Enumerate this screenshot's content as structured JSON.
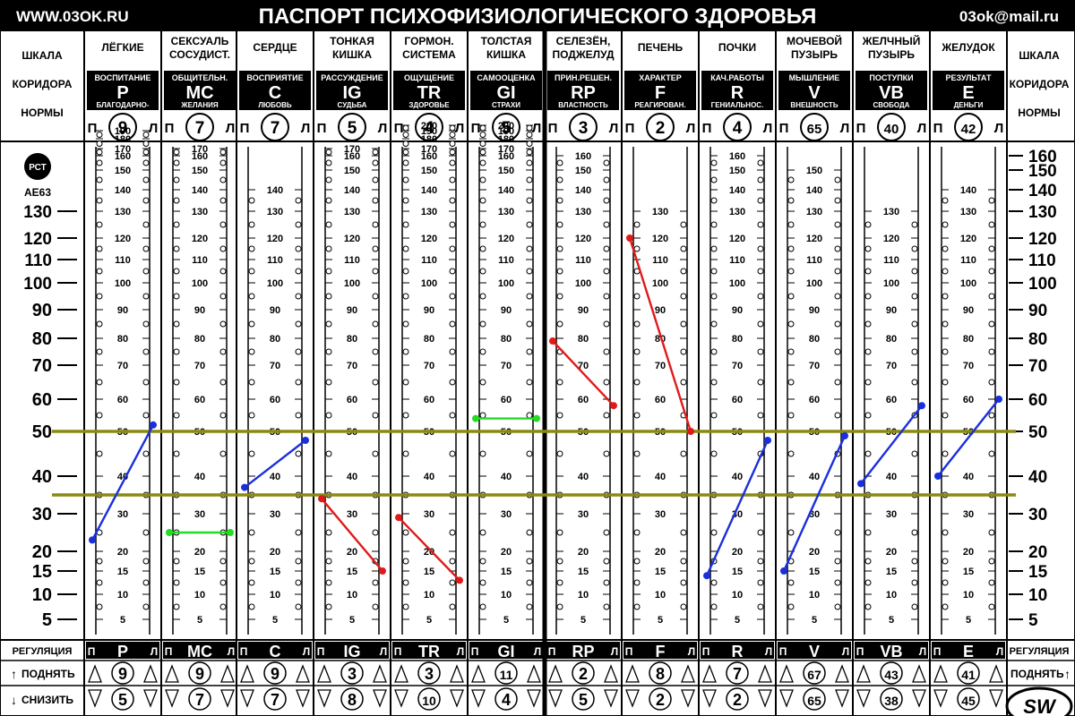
{
  "header": {
    "site": "WWW.03OK.RU",
    "title": "ПАСПОРТ ПСИХОФИЗИОЛОГИЧЕСКОГО ЗДОРОВЬЯ",
    "email": "03ok@mail.ru"
  },
  "side_scale": {
    "label_lines": [
      "ШКАЛА",
      "КОРИДОРА",
      "НОРМЫ"
    ],
    "left_ticks": [
      "130",
      "120",
      "110",
      "100",
      "90",
      "80",
      "70",
      "60",
      "50",
      "40",
      "30",
      "20",
      "15",
      "10",
      "5"
    ],
    "right_ticks": [
      "160",
      "150",
      "140",
      "130",
      "120",
      "110",
      "100",
      "90",
      "80",
      "70",
      "60",
      "50",
      "40",
      "30",
      "20",
      "15",
      "10",
      "5"
    ],
    "cert_mark": "РСТ",
    "cert_code": "АЕ63"
  },
  "footer": {
    "regulation": "РЕГУЛЯЦИЯ",
    "raise": "ПОДНЯТЬ",
    "lower": "СНИЗИТЬ",
    "logo": "SW"
  },
  "pl_labels": {
    "left": "П",
    "right": "Л"
  },
  "colors": {
    "increase_line": "#1a2fdc",
    "decrease_line": "#e01a1a",
    "flat_line": "#22dd22",
    "norm_corridor": "#8a8a10",
    "chrome": "#000000"
  },
  "chart_data": {
    "type": "line",
    "norm_corridor": {
      "upper": 50,
      "lower": 35,
      "unit": "scale of corridor of norm"
    },
    "organs": [
      {
        "organ": [
          "ЛЁГКИЕ"
        ],
        "trait_top": "ВОСПИТАНИЕ",
        "code": "P",
        "trait_bottom": "БЛАГОДАРНО-",
        "index": "9",
        "ticks": [
          190,
          180,
          170,
          160,
          150,
          140,
          130,
          120,
          110,
          100,
          90,
          80,
          70,
          60,
          50,
          40,
          30,
          20,
          15,
          10,
          5
        ],
        "p": 23,
        "l": 52,
        "color": "increase",
        "raise": "9",
        "lower": "5"
      },
      {
        "organ": [
          "СЕКСУАЛЬ",
          "СОСУДИСТ."
        ],
        "trait_top": "ОБЩИТЕЛЬН.",
        "code": "MC",
        "trait_bottom": "ЖЕЛАНИЯ",
        "index": "7",
        "ticks": [
          170,
          160,
          150,
          140,
          130,
          120,
          110,
          100,
          90,
          80,
          70,
          60,
          50,
          40,
          30,
          20,
          15,
          10,
          5
        ],
        "p": 25,
        "l": 25,
        "color": "flat",
        "raise": "9",
        "lower": "7"
      },
      {
        "organ": [
          "СЕРДЦЕ"
        ],
        "trait_top": "ВОСПРИЯТИЕ",
        "code": "C",
        "trait_bottom": "ЛЮБОВЬ",
        "index": "7",
        "ticks": [
          140,
          130,
          120,
          110,
          100,
          90,
          80,
          70,
          60,
          50,
          40,
          30,
          20,
          15,
          10,
          5
        ],
        "p": 37,
        "l": 48,
        "color": "increase",
        "raise": "9",
        "lower": "7"
      },
      {
        "organ": [
          "ТОНКАЯ",
          "КИШКА"
        ],
        "trait_top": "РАССУЖДЕНИЕ",
        "code": "IG",
        "trait_bottom": "СУДЬБА",
        "index": "5",
        "ticks": [
          170,
          160,
          150,
          140,
          130,
          120,
          110,
          100,
          90,
          80,
          70,
          60,
          50,
          40,
          30,
          20,
          15,
          10,
          5
        ],
        "p": 34,
        "l": 15,
        "color": "decrease",
        "raise": "3",
        "lower": "8"
      },
      {
        "organ": [
          "ГОРМОН.",
          "СИСТЕМА"
        ],
        "trait_top": "ОЩУЩЕНИЕ",
        "code": "TR",
        "trait_bottom": "ЗДОРОВЬЕ",
        "index": "4",
        "ticks": [
          200,
          190,
          180,
          170,
          160,
          150,
          140,
          130,
          120,
          110,
          100,
          90,
          80,
          70,
          60,
          50,
          40,
          30,
          20,
          15,
          10,
          5
        ],
        "p": 29,
        "l": 13,
        "color": "decrease",
        "raise": "3",
        "lower": "10"
      },
      {
        "organ": [
          "ТОЛСТАЯ",
          "КИШКА"
        ],
        "trait_top": "САМООЦЕНКА",
        "code": "GI",
        "trait_bottom": "СТРАХИ",
        "index": "5",
        "ticks": [
          200,
          190,
          180,
          170,
          160,
          150,
          140,
          130,
          120,
          110,
          100,
          90,
          80,
          70,
          60,
          50,
          40,
          30,
          20,
          15,
          10,
          5
        ],
        "p": 54,
        "l": 54,
        "color": "flat",
        "raise": "11",
        "lower": "4"
      },
      {
        "organ": [
          "СЕЛЕЗЁН,",
          "ПОДЖЕЛУД"
        ],
        "trait_top": "ПРИН.РЕШЕН.",
        "code": "RP",
        "trait_bottom": "ВЛАСТНОСТЬ",
        "index": "3",
        "ticks": [
          160,
          150,
          140,
          130,
          120,
          110,
          100,
          90,
          80,
          70,
          60,
          50,
          40,
          30,
          20,
          15,
          10,
          5
        ],
        "p": 79,
        "l": 58,
        "color": "decrease",
        "raise": "2",
        "lower": "5"
      },
      {
        "organ": [
          "ПЕЧЕНЬ"
        ],
        "trait_top": "ХАРАКТЕР",
        "code": "F",
        "trait_bottom": "РЕАГИРОВАН.",
        "index": "2",
        "ticks": [
          130,
          120,
          110,
          100,
          90,
          80,
          70,
          60,
          50,
          40,
          30,
          20,
          15,
          10,
          5
        ],
        "p": 120,
        "l": 50,
        "color": "decrease",
        "raise": "8",
        "lower": "2"
      },
      {
        "organ": [
          "ПОЧКИ"
        ],
        "trait_top": "КАЧ.РАБОТЫ",
        "code": "R",
        "trait_bottom": "ГЕНИАЛЬНОС.",
        "index": "4",
        "ticks": [
          160,
          150,
          140,
          130,
          120,
          110,
          100,
          90,
          80,
          70,
          60,
          50,
          40,
          30,
          20,
          15,
          10,
          5
        ],
        "p": 14,
        "l": 48,
        "color": "increase",
        "raise": "7",
        "lower": "2"
      },
      {
        "organ": [
          "МОЧЕВОЙ",
          "ПУЗЫРЬ"
        ],
        "trait_top": "МЫШЛЕНИЕ",
        "code": "V",
        "trait_bottom": "ВНЕШНОСТЬ",
        "index": "65",
        "ticks": [
          150,
          140,
          130,
          120,
          110,
          100,
          90,
          80,
          70,
          60,
          50,
          40,
          30,
          20,
          15,
          10,
          5
        ],
        "p": 15,
        "l": 49,
        "color": "increase",
        "raise": "67",
        "lower": "65"
      },
      {
        "organ": [
          "ЖЕЛЧНЫЙ",
          "ПУЗЫРЬ"
        ],
        "trait_top": "ПОСТУПКИ",
        "code": "VB",
        "trait_bottom": "СВОБОДА",
        "index": "40",
        "ticks": [
          130,
          120,
          110,
          100,
          90,
          80,
          70,
          60,
          50,
          40,
          30,
          20,
          15,
          10,
          5
        ],
        "p": 38,
        "l": 58,
        "color": "increase",
        "raise": "43",
        "lower": "38"
      },
      {
        "organ": [
          "ЖЕЛУДОК"
        ],
        "trait_top": "РЕЗУЛЬТАТ",
        "code": "E",
        "trait_bottom": "ДЕНЬГИ",
        "index": "42",
        "ticks": [
          140,
          130,
          120,
          110,
          100,
          90,
          80,
          70,
          60,
          50,
          40,
          30,
          20,
          15,
          10,
          5
        ],
        "p": 40,
        "l": 60,
        "color": "increase",
        "raise": "41",
        "lower": "45"
      }
    ]
  }
}
